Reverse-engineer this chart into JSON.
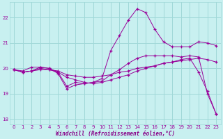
{
  "background_color": "#c8f0f0",
  "grid_color": "#a0d8d8",
  "line_color": "#990099",
  "xlabel": "Windchill (Refroidissement éolien,°C)",
  "xlabel_color": "#880088",
  "xlim": [
    -0.5,
    23.5
  ],
  "ylim": [
    17.8,
    22.6
  ],
  "yticks": [
    18,
    19,
    20,
    21,
    22
  ],
  "xticks": [
    0,
    1,
    2,
    3,
    4,
    5,
    6,
    7,
    8,
    9,
    10,
    11,
    12,
    13,
    14,
    15,
    16,
    17,
    18,
    19,
    20,
    21,
    22,
    23
  ],
  "lines": [
    {
      "x": [
        0,
        1,
        2,
        3,
        4,
        5,
        6,
        7,
        8,
        9,
        10,
        11,
        12,
        13,
        14,
        15,
        16,
        17,
        18,
        19,
        20,
        21,
        22,
        23
      ],
      "y": [
        19.95,
        19.85,
        19.9,
        19.95,
        19.95,
        19.9,
        19.75,
        19.7,
        19.65,
        19.65,
        19.7,
        19.75,
        19.85,
        19.9,
        20.0,
        20.05,
        20.1,
        20.2,
        20.25,
        20.3,
        20.35,
        20.4,
        20.35,
        20.25
      ]
    },
    {
      "x": [
        0,
        1,
        2,
        3,
        4,
        5,
        6,
        7,
        8,
        9,
        10,
        11,
        12,
        13,
        14,
        15,
        16,
        17,
        18,
        19,
        20,
        21,
        22,
        23
      ],
      "y": [
        19.95,
        19.85,
        19.9,
        20.05,
        20.0,
        19.85,
        19.3,
        19.45,
        19.4,
        19.45,
        19.5,
        19.75,
        19.95,
        20.2,
        20.4,
        20.5,
        20.5,
        20.5,
        20.5,
        20.45,
        20.5,
        20.45,
        19.0,
        18.2
      ]
    },
    {
      "x": [
        0,
        1,
        2,
        3,
        4,
        5,
        6,
        7,
        8,
        9,
        10,
        11,
        12,
        13,
        14,
        15,
        16,
        17,
        18,
        19,
        20,
        21,
        22,
        23
      ],
      "y": [
        19.95,
        19.9,
        20.05,
        20.05,
        20.0,
        19.8,
        19.2,
        19.35,
        19.4,
        19.45,
        19.6,
        20.7,
        21.3,
        21.9,
        22.35,
        22.2,
        21.55,
        21.05,
        20.85,
        20.85,
        20.85,
        21.05,
        21.0,
        20.9
      ]
    },
    {
      "x": [
        0,
        1,
        2,
        3,
        4,
        5,
        6,
        7,
        8,
        9,
        10,
        11,
        12,
        13,
        14,
        15,
        16,
        17,
        18,
        19,
        20,
        21,
        22,
        23
      ],
      "y": [
        19.95,
        19.85,
        19.9,
        20.0,
        19.95,
        19.85,
        19.65,
        19.55,
        19.45,
        19.4,
        19.45,
        19.55,
        19.65,
        19.75,
        19.9,
        20.0,
        20.1,
        20.2,
        20.25,
        20.35,
        20.4,
        19.85,
        19.1,
        18.2
      ]
    }
  ]
}
